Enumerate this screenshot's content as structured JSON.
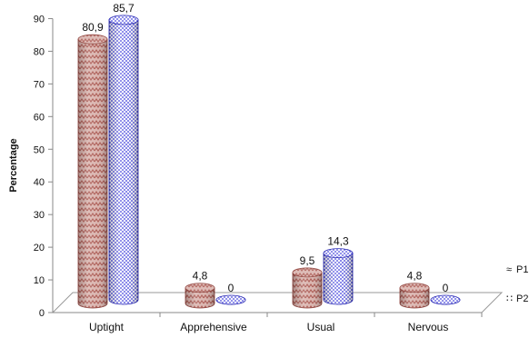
{
  "chart_data": {
    "type": "bar",
    "style": "3d-cylinder",
    "title": "",
    "xlabel": "",
    "ylabel": "Percentage",
    "ylim": [
      0,
      90
    ],
    "yticks": [
      "0",
      "10",
      "20",
      "30",
      "40",
      "50",
      "60",
      "70",
      "80",
      "90"
    ],
    "categories": [
      "Uptight",
      "Apprehensive",
      "Usual",
      "Nervous"
    ],
    "series": [
      {
        "name": "P1",
        "values": [
          80.9,
          4.8,
          9.5,
          4.8
        ],
        "labels": [
          "80,9",
          "4,8",
          "9,5",
          "4,8"
        ],
        "color": "#c98a84",
        "pattern": "zigzag"
      },
      {
        "name": "P2",
        "values": [
          85.7,
          0,
          14.3,
          0
        ],
        "labels": [
          "85,7",
          "0",
          "14,3",
          "0"
        ],
        "color": "#3b3bdc",
        "pattern": "dots"
      }
    ],
    "legend": "right",
    "grid": false
  }
}
